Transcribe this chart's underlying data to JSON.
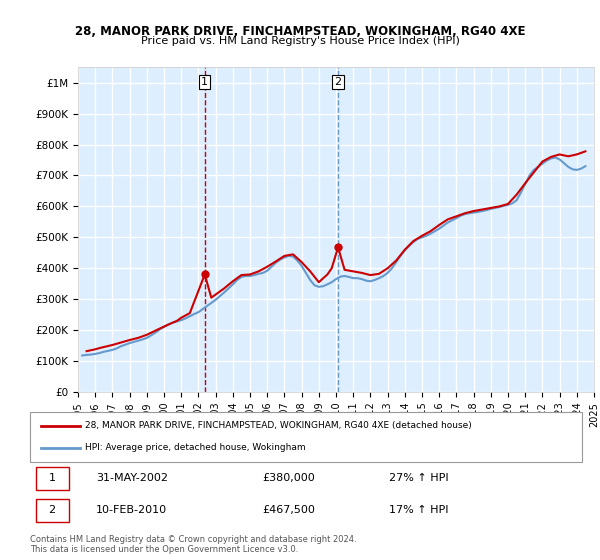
{
  "title1": "28, MANOR PARK DRIVE, FINCHAMPSTEAD, WOKINGHAM, RG40 4XE",
  "title2": "Price paid vs. HM Land Registry's House Price Index (HPI)",
  "legend_label1": "28, MANOR PARK DRIVE, FINCHAMPSTEAD, WOKINGHAM, RG40 4XE (detached house)",
  "legend_label2": "HPI: Average price, detached house, Wokingham",
  "footnote": "Contains HM Land Registry data © Crown copyright and database right 2024.\nThis data is licensed under the Open Government Licence v3.0.",
  "annotation1": {
    "num": "1",
    "date": "31-MAY-2002",
    "price": "£380,000",
    "pct": "27% ↑ HPI"
  },
  "annotation2": {
    "num": "2",
    "date": "10-FEB-2010",
    "price": "£467,500",
    "pct": "17% ↑ HPI"
  },
  "color_red": "#cc0000",
  "color_blue": "#6699cc",
  "vline_color": "#cc0000",
  "vline2_color": "#6699cc",
  "bg_color": "#ddeeff",
  "grid_color": "#ffffff",
  "ylim": [
    0,
    1050000
  ],
  "yticks": [
    0,
    100000,
    200000,
    300000,
    400000,
    500000,
    600000,
    700000,
    800000,
    900000,
    1000000
  ],
  "ytick_labels": [
    "£0",
    "£100K",
    "£200K",
    "£300K",
    "£400K",
    "£500K",
    "£600K",
    "£700K",
    "£800K",
    "£900K",
    "£1M"
  ],
  "hpi_x": [
    1995.25,
    1995.5,
    1995.75,
    1996.0,
    1996.25,
    1996.5,
    1996.75,
    1997.0,
    1997.25,
    1997.5,
    1997.75,
    1998.0,
    1998.25,
    1998.5,
    1998.75,
    1999.0,
    1999.25,
    1999.5,
    1999.75,
    2000.0,
    2000.25,
    2000.5,
    2000.75,
    2001.0,
    2001.25,
    2001.5,
    2001.75,
    2002.0,
    2002.25,
    2002.5,
    2002.75,
    2003.0,
    2003.25,
    2003.5,
    2003.75,
    2004.0,
    2004.25,
    2004.5,
    2004.75,
    2005.0,
    2005.25,
    2005.5,
    2005.75,
    2006.0,
    2006.25,
    2006.5,
    2006.75,
    2007.0,
    2007.25,
    2007.5,
    2007.75,
    2008.0,
    2008.25,
    2008.5,
    2008.75,
    2009.0,
    2009.25,
    2009.5,
    2009.75,
    2010.0,
    2010.25,
    2010.5,
    2010.75,
    2011.0,
    2011.25,
    2011.5,
    2011.75,
    2012.0,
    2012.25,
    2012.5,
    2012.75,
    2013.0,
    2013.25,
    2013.5,
    2013.75,
    2014.0,
    2014.25,
    2014.5,
    2014.75,
    2015.0,
    2015.25,
    2015.5,
    2015.75,
    2016.0,
    2016.25,
    2016.5,
    2016.75,
    2017.0,
    2017.25,
    2017.5,
    2017.75,
    2018.0,
    2018.25,
    2018.5,
    2018.75,
    2019.0,
    2019.25,
    2019.5,
    2019.75,
    2020.0,
    2020.25,
    2020.5,
    2020.75,
    2021.0,
    2021.25,
    2021.5,
    2021.75,
    2022.0,
    2022.25,
    2022.5,
    2022.75,
    2023.0,
    2023.25,
    2023.5,
    2023.75,
    2024.0,
    2024.25,
    2024.5
  ],
  "hpi_y": [
    118000,
    120000,
    121000,
    123000,
    126000,
    130000,
    133000,
    136000,
    141000,
    148000,
    153000,
    158000,
    162000,
    166000,
    170000,
    175000,
    183000,
    192000,
    202000,
    210000,
    218000,
    224000,
    228000,
    232000,
    238000,
    245000,
    252000,
    258000,
    268000,
    278000,
    288000,
    298000,
    310000,
    322000,
    335000,
    348000,
    362000,
    372000,
    375000,
    375000,
    378000,
    382000,
    385000,
    392000,
    405000,
    418000,
    428000,
    435000,
    440000,
    438000,
    425000,
    408000,
    385000,
    362000,
    345000,
    340000,
    342000,
    348000,
    355000,
    365000,
    373000,
    375000,
    372000,
    368000,
    368000,
    365000,
    360000,
    358000,
    362000,
    368000,
    375000,
    385000,
    400000,
    420000,
    440000,
    458000,
    472000,
    485000,
    495000,
    500000,
    505000,
    512000,
    520000,
    528000,
    538000,
    548000,
    555000,
    562000,
    570000,
    575000,
    578000,
    580000,
    582000,
    585000,
    588000,
    592000,
    595000,
    598000,
    602000,
    605000,
    610000,
    620000,
    645000,
    672000,
    700000,
    718000,
    728000,
    738000,
    748000,
    755000,
    758000,
    752000,
    740000,
    728000,
    720000,
    718000,
    722000,
    730000
  ],
  "price_paid_x": [
    1995.5,
    1996.0,
    1996.25,
    1997.0,
    1997.5,
    1998.0,
    1998.5,
    1999.0,
    1999.75,
    2000.25,
    2000.75,
    2001.0,
    2001.5,
    2002.37,
    2002.75,
    2003.5,
    2004.0,
    2004.5,
    2005.0,
    2005.5,
    2006.0,
    2006.5,
    2007.0,
    2007.5,
    2008.0,
    2008.5,
    2009.0,
    2009.5,
    2009.75,
    2010.12,
    2010.5,
    2011.0,
    2011.5,
    2012.0,
    2012.5,
    2013.0,
    2013.5,
    2014.0,
    2014.5,
    2015.0,
    2015.5,
    2016.0,
    2016.5,
    2017.0,
    2017.5,
    2018.0,
    2018.5,
    2019.0,
    2019.5,
    2020.0,
    2020.5,
    2021.0,
    2021.5,
    2022.0,
    2022.5,
    2023.0,
    2023.5,
    2024.0,
    2024.5
  ],
  "price_paid_y": [
    132000,
    138000,
    142000,
    152000,
    160000,
    168000,
    175000,
    185000,
    205000,
    218000,
    230000,
    240000,
    255000,
    380000,
    305000,
    335000,
    358000,
    378000,
    380000,
    390000,
    405000,
    422000,
    440000,
    445000,
    420000,
    390000,
    355000,
    380000,
    400000,
    467500,
    395000,
    390000,
    385000,
    378000,
    382000,
    400000,
    425000,
    460000,
    488000,
    505000,
    520000,
    540000,
    558000,
    568000,
    578000,
    585000,
    590000,
    595000,
    600000,
    608000,
    638000,
    675000,
    710000,
    745000,
    760000,
    768000,
    762000,
    768000,
    778000
  ],
  "vline1_x": 2002.37,
  "vline2_x": 2010.12,
  "marker1_y": 380000,
  "marker2_y": 467500,
  "xlim": [
    1995.0,
    2025.0
  ],
  "xticks": [
    1995,
    1996,
    1997,
    1998,
    1999,
    2000,
    2001,
    2002,
    2003,
    2004,
    2005,
    2006,
    2007,
    2008,
    2009,
    2010,
    2011,
    2012,
    2013,
    2014,
    2015,
    2016,
    2017,
    2018,
    2019,
    2020,
    2021,
    2022,
    2023,
    2024,
    2025
  ]
}
